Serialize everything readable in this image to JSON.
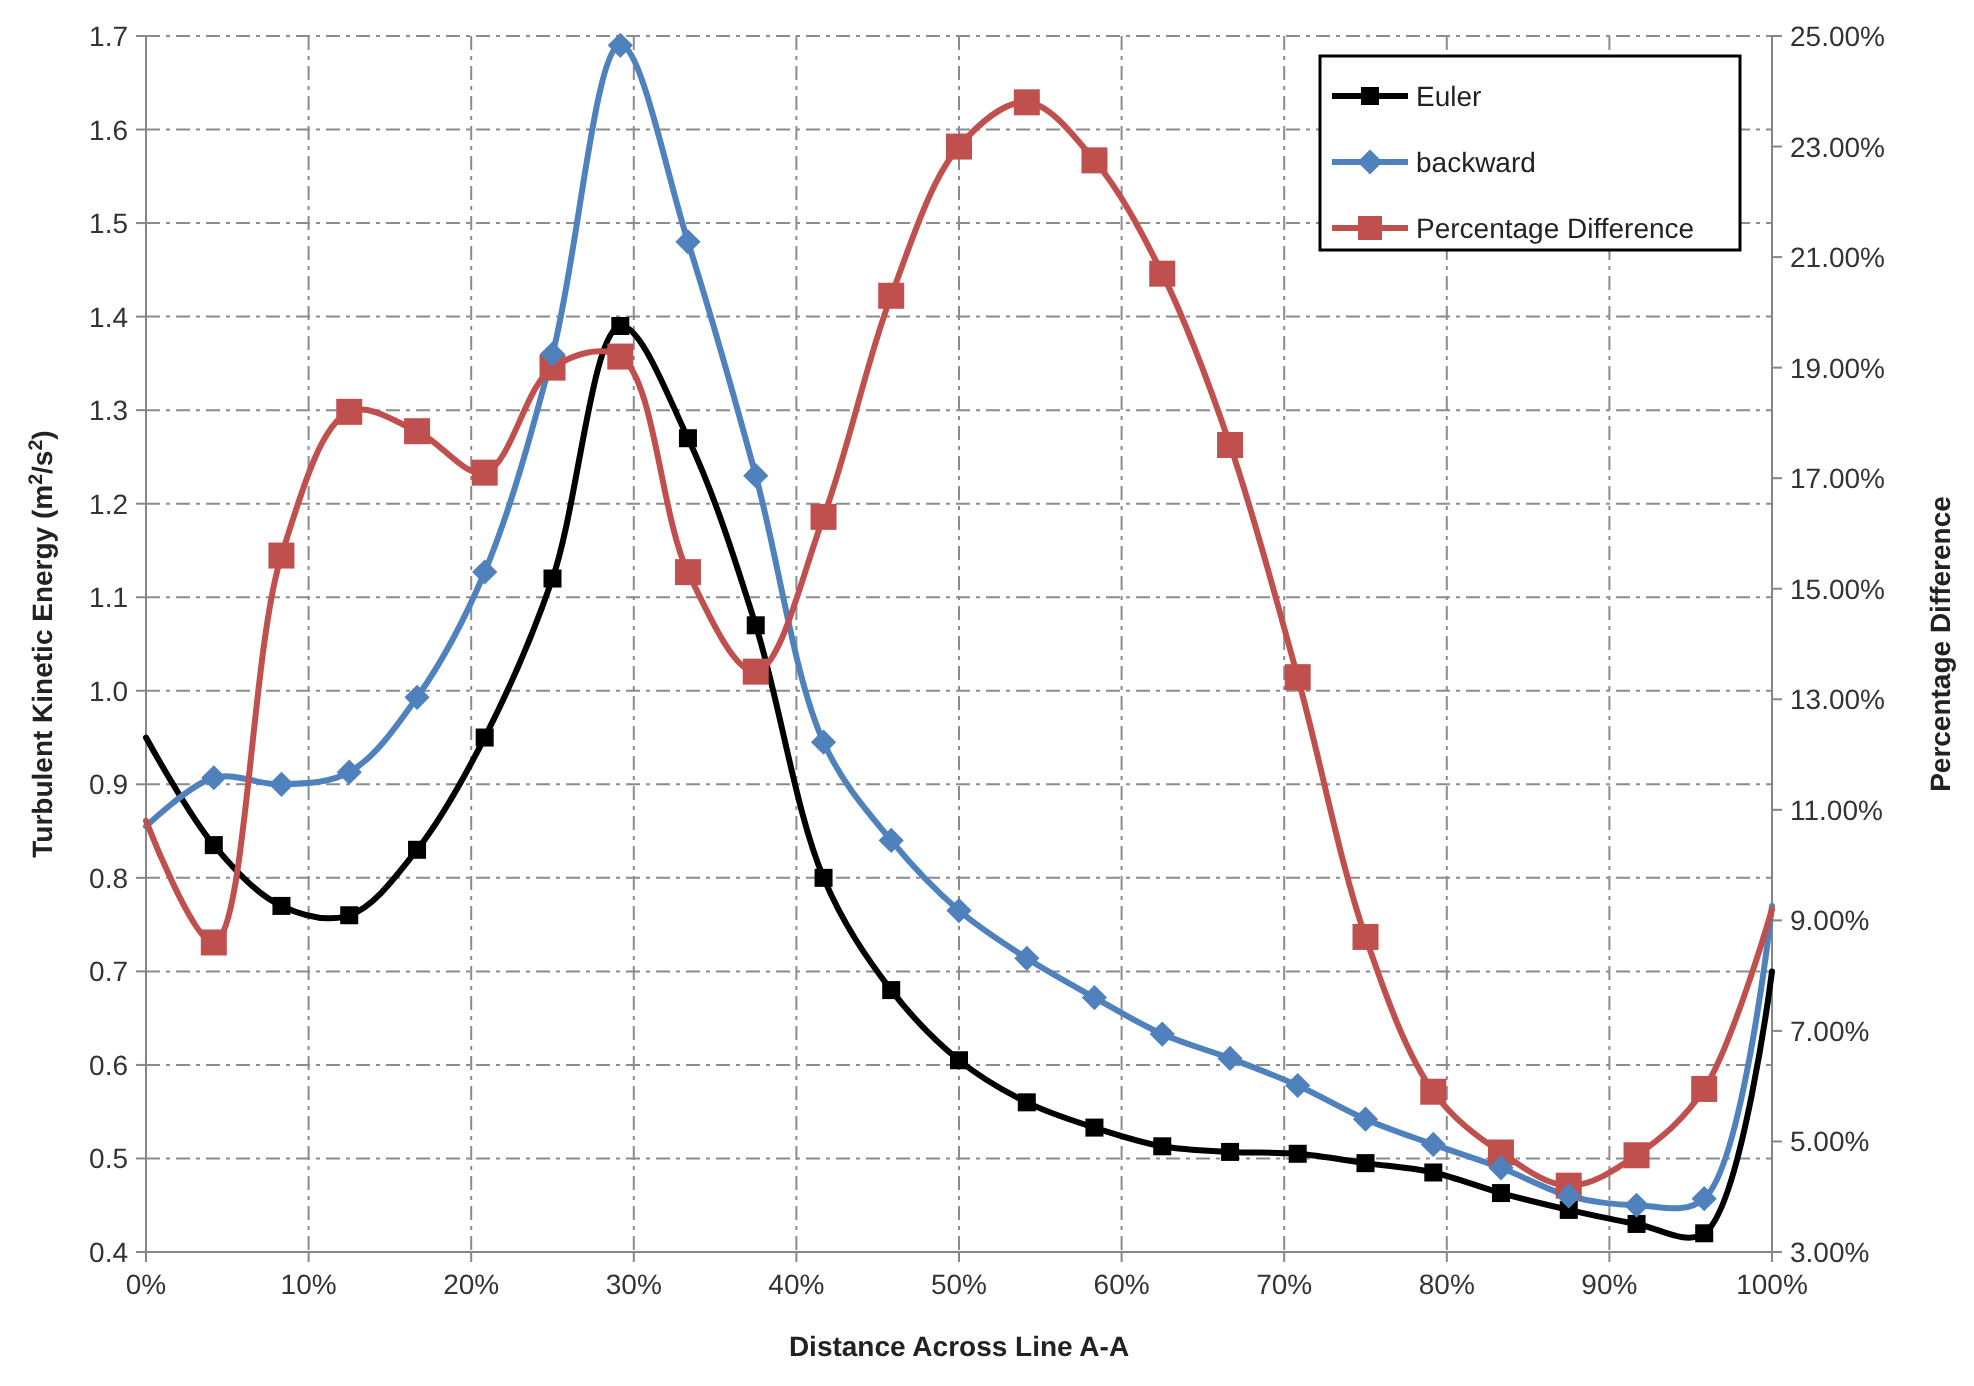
{
  "chart_data": {
    "type": "line",
    "xlabel": "Distance Across Line A-A",
    "ylabel": "Turbulent Kinetic Energy (m$^{2}$/s$^{2}$)",
    "y2label": "Percentage Difference",
    "x": [
      0,
      4.17,
      8.33,
      12.5,
      16.67,
      20.83,
      25,
      29.17,
      33.33,
      37.5,
      41.67,
      45.83,
      50,
      54.17,
      58.33,
      62.5,
      66.67,
      70.83,
      75,
      79.17,
      83.33,
      87.5,
      91.67,
      95.83,
      100
    ],
    "series": [
      {
        "name": "Euler",
        "color": "#000000",
        "marker": "square",
        "values": [
          0.95,
          0.835,
          0.77,
          0.76,
          0.83,
          0.95,
          1.12,
          1.39,
          1.27,
          1.07,
          0.8,
          0.68,
          0.605,
          0.56,
          0.533,
          0.513,
          0.507,
          0.505,
          0.495,
          0.485,
          0.463,
          0.445,
          0.43,
          0.42,
          0.7
        ]
      },
      {
        "name": "backward",
        "color": "#4f81bd",
        "marker": "diamond",
        "values": [
          0.855,
          0.907,
          0.9,
          0.913,
          0.993,
          1.127,
          1.36,
          1.69,
          1.48,
          1.23,
          0.945,
          0.84,
          0.765,
          0.714,
          0.672,
          0.633,
          0.607,
          0.578,
          0.542,
          0.515,
          0.49,
          0.46,
          0.45,
          0.457,
          0.77
        ]
      },
      {
        "name": "Percentage Difference",
        "color": "#c0504d",
        "marker": "square",
        "axis": "y2",
        "values": [
          10.8,
          8.6,
          15.6,
          18.2,
          17.85,
          17.1,
          19.0,
          19.2,
          15.3,
          13.5,
          16.3,
          20.3,
          23.0,
          23.8,
          22.75,
          20.7,
          17.6,
          13.4,
          8.7,
          5.9,
          4.8,
          4.2,
          4.75,
          5.95,
          9.2
        ]
      }
    ],
    "xlim": [
      0,
      100
    ],
    "xticks": [
      {
        "value": 0,
        "label": "0%"
      },
      {
        "value": 10,
        "label": "10%"
      },
      {
        "value": 20,
        "label": "20%"
      },
      {
        "value": 30,
        "label": "30%"
      },
      {
        "value": 40,
        "label": "40%"
      },
      {
        "value": 50,
        "label": "50%"
      },
      {
        "value": 60,
        "label": "60%"
      },
      {
        "value": 70,
        "label": "70%"
      },
      {
        "value": 80,
        "label": "80%"
      },
      {
        "value": 90,
        "label": "90%"
      },
      {
        "value": 100,
        "label": "100%"
      }
    ],
    "ylim": [
      0.4,
      1.7
    ],
    "yticks": [
      {
        "value": 0.4,
        "label": "0.4"
      },
      {
        "value": 0.5,
        "label": "0.5"
      },
      {
        "value": 0.6,
        "label": "0.6"
      },
      {
        "value": 0.7,
        "label": "0.7"
      },
      {
        "value": 0.8,
        "label": "0.8"
      },
      {
        "value": 0.9,
        "label": "0.9"
      },
      {
        "value": 1.0,
        "label": "1.0"
      },
      {
        "value": 1.1,
        "label": "1.1"
      },
      {
        "value": 1.2,
        "label": "1.2"
      },
      {
        "value": 1.3,
        "label": "1.3"
      },
      {
        "value": 1.4,
        "label": "1.4"
      },
      {
        "value": 1.5,
        "label": "1.5"
      },
      {
        "value": 1.6,
        "label": "1.6"
      },
      {
        "value": 1.7,
        "label": "1.7"
      }
    ],
    "y2lim": [
      3,
      25
    ],
    "y2ticks": [
      {
        "value": 3,
        "label": "3.00%"
      },
      {
        "value": 5,
        "label": "5.00%"
      },
      {
        "value": 7,
        "label": "7.00%"
      },
      {
        "value": 9,
        "label": "9.00%"
      },
      {
        "value": 11,
        "label": "11.00%"
      },
      {
        "value": 13,
        "label": "13.00%"
      },
      {
        "value": 15,
        "label": "15.00%"
      },
      {
        "value": 17,
        "label": "17.00%"
      },
      {
        "value": 19,
        "label": "19.00%"
      },
      {
        "value": 21,
        "label": "21.00%"
      },
      {
        "value": 23,
        "label": "23.00%"
      },
      {
        "value": 25,
        "label": "25.00%"
      }
    ],
    "grid": true,
    "legend": "top right",
    "line_style": "solid"
  }
}
